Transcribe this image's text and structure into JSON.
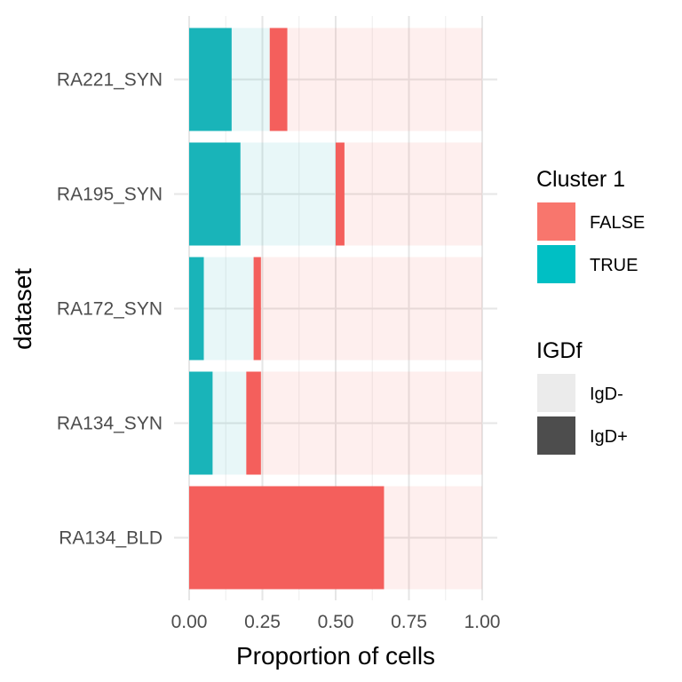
{
  "chart_data": {
    "type": "bar",
    "orientation": "horizontal",
    "stacked": true,
    "xlabel": "Proportion of cells",
    "ylabel": "dataset",
    "xlim": [
      0,
      1
    ],
    "xticks": [
      "0.00",
      "0.25",
      "0.50",
      "0.75",
      "1.00"
    ],
    "grid": true,
    "legend_position": "right",
    "categories": [
      "RA221_SYN",
      "RA195_SYN",
      "RA172_SYN",
      "RA134_SYN",
      "RA134_BLD"
    ],
    "series": [
      {
        "cluster": "TRUE",
        "igd": "IgD+",
        "values": [
          0.145,
          0.175,
          0.05,
          0.08,
          0.0
        ]
      },
      {
        "cluster": "TRUE",
        "igd": "IgD-",
        "values": [
          0.13,
          0.325,
          0.17,
          0.115,
          0.0
        ]
      },
      {
        "cluster": "FALSE",
        "igd": "IgD+",
        "values": [
          0.06,
          0.03,
          0.025,
          0.05,
          0.665
        ]
      },
      {
        "cluster": "FALSE",
        "igd": "IgD-",
        "values": [
          0.665,
          0.47,
          0.755,
          0.755,
          0.335
        ]
      }
    ],
    "legends": [
      {
        "title": "Cluster 1",
        "items": [
          {
            "label": "FALSE",
            "color": "#F8766D"
          },
          {
            "label": "TRUE",
            "color": "#00BFC4"
          }
        ]
      },
      {
        "title": "IGDf",
        "items": [
          {
            "label": "IgD-",
            "color": "#EBEBEB"
          },
          {
            "label": "IgD+",
            "color": "#4D4D4D"
          }
        ]
      }
    ],
    "colors": {
      "TRUE": "#19B4B9",
      "FALSE": "#F45F5C"
    },
    "alpha": {
      "IgD+": 1.0,
      "IgD-": 0.1
    }
  }
}
